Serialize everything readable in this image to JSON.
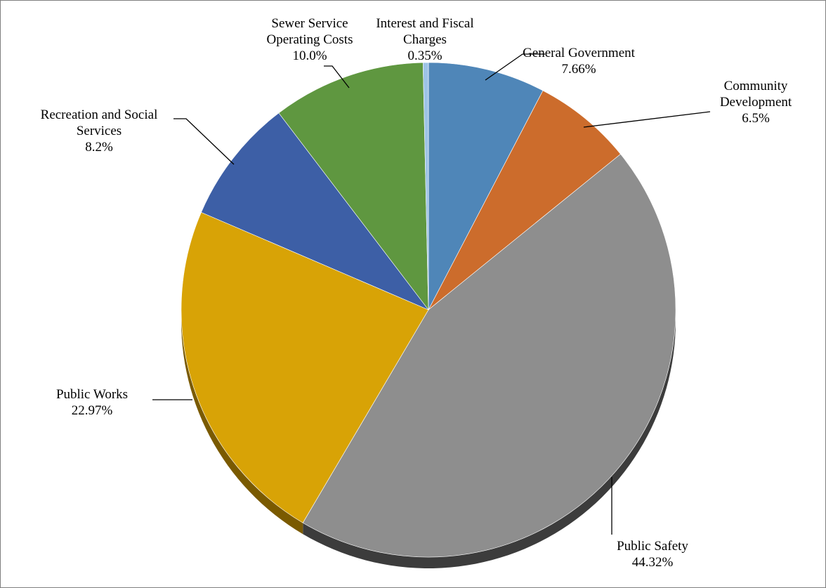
{
  "chart_data": {
    "type": "pie",
    "title": "",
    "slices": [
      {
        "label": [
          "General Government"
        ],
        "value_label": "7.66%",
        "value": 7.66,
        "color": "#4f86b8",
        "side_color": "#3b6690"
      },
      {
        "label": [
          "Community",
          "Development"
        ],
        "value_label": "6.5%",
        "value": 6.5,
        "color": "#cc6c2c",
        "side_color": "#99501f"
      },
      {
        "label": [
          "Public Safety"
        ],
        "value_label": "44.32%",
        "value": 44.32,
        "color": "#8e8e8e",
        "side_color": "#3c3c3c"
      },
      {
        "label": [
          "Public Works"
        ],
        "value_label": "22.97%",
        "value": 22.97,
        "color": "#d8a306",
        "side_color": "#7a5a00"
      },
      {
        "label": [
          "Recreation and Social",
          "Services"
        ],
        "value_label": "8.2%",
        "value": 8.2,
        "color": "#3d5fa6",
        "side_color": "#2a4478"
      },
      {
        "label": [
          "Sewer Service",
          "Operating Costs"
        ],
        "value_label": "10.0%",
        "value": 10.0,
        "color": "#5f9740",
        "side_color": "#44702e"
      },
      {
        "label": [
          "Interest and Fiscal",
          "Charges"
        ],
        "value_label": "0.35%",
        "value": 0.35,
        "color": "#9dc3e6",
        "side_color": "#6f93b5"
      }
    ],
    "start_angle_deg": 0,
    "direction": "clockwise",
    "legend": "none"
  }
}
